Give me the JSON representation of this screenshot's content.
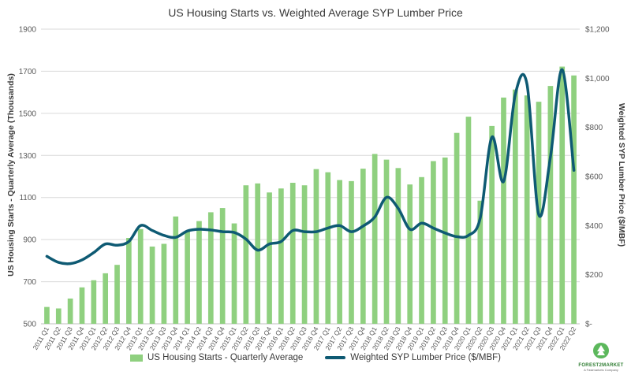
{
  "chart_data": {
    "type": "bar+line",
    "title": "US Housing Starts vs. Weighted Average SYP Lumber Price",
    "ylabel_left": "US Housing Starts - Quarterly Average (Thousands)",
    "ylabel_right": "Weighted SYP Lumber Price ($/MBF)",
    "ylim_left": [
      500,
      1900
    ],
    "ylim_right": [
      0,
      1200
    ],
    "left_ticks": [
      "500",
      "700",
      "900",
      "1100",
      "1300",
      "1500",
      "1700",
      "1900"
    ],
    "right_ticks": [
      "$-",
      "$200",
      "$400",
      "$600",
      "$800",
      "$1,000",
      "$1,200"
    ],
    "gridlines": true,
    "legend_position": "bottom",
    "categories": [
      "2011 Q1",
      "2011 Q2",
      "2011 Q3",
      "2011 Q4",
      "2012 Q1",
      "2012 Q2",
      "2012 Q3",
      "2012 Q4",
      "2013 Q1",
      "2013 Q2",
      "2013 Q3",
      "2013 Q4",
      "2014 Q1",
      "2014 Q2",
      "2014 Q3",
      "2014 Q4",
      "2015 Q1",
      "2015 Q2",
      "2015 Q3",
      "2015 Q4",
      "2016 Q1",
      "2016 Q2",
      "2016 Q3",
      "2016 Q4",
      "2017 Q1",
      "2017 Q2",
      "2017 Q3",
      "2017 Q4",
      "2018 Q1",
      "2018 Q2",
      "2018 Q3",
      "2018 Q4",
      "2019 Q1",
      "2019 Q2",
      "2019 Q3",
      "2019 Q4",
      "2020 Q1",
      "2020 Q2",
      "2020 Q3",
      "2020 Q4",
      "2021 Q1",
      "2021 Q2",
      "2021 Q3",
      "2021 Q4",
      "2022 Q1",
      "2022 Q2"
    ],
    "series": [
      {
        "name": "US Housing Starts - Quarterly Average",
        "type": "bar",
        "axis": "left",
        "color": "#8fd07f",
        "values": [
          580,
          573,
          620,
          673,
          707,
          740,
          780,
          908,
          950,
          867,
          880,
          1010,
          940,
          988,
          1030,
          1050,
          977,
          1158,
          1167,
          1124,
          1143,
          1170,
          1158,
          1235,
          1220,
          1183,
          1178,
          1237,
          1307,
          1280,
          1240,
          1162,
          1197,
          1273,
          1290,
          1407,
          1484,
          1085,
          1440,
          1575,
          1613,
          1585,
          1555,
          1630,
          1722,
          1680
        ]
      },
      {
        "name": "Weighted SYP Lumber Price ($/MBF)",
        "type": "line",
        "axis": "right",
        "color": "#0e5a73",
        "values": [
          275,
          250,
          245,
          260,
          290,
          325,
          320,
          335,
          400,
          380,
          360,
          352,
          378,
          385,
          382,
          375,
          372,
          345,
          300,
          325,
          335,
          380,
          375,
          375,
          390,
          400,
          375,
          398,
          435,
          515,
          470,
          385,
          410,
          390,
          370,
          355,
          360,
          430,
          760,
          580,
          935,
          975,
          445,
          680,
          1035,
          625
        ]
      }
    ]
  },
  "logo": {
    "name": "FOREST2MARKET",
    "sub": "A Fastmarkets Company"
  }
}
